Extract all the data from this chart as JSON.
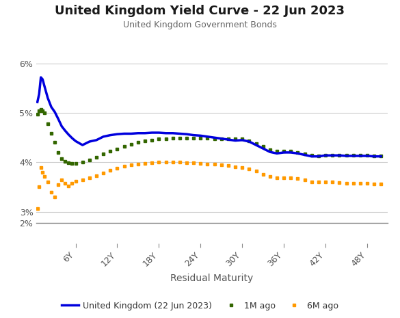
{
  "title": "United Kingdom Yield Curve - 22 Jun 2023",
  "subtitle": "United Kingdom Government Bonds",
  "xlabel": "Residual Maturity",
  "title_color": "#1a1a1a",
  "subtitle_color": "#666666",
  "background_color": "#ffffff",
  "grid_color": "#cccccc",
  "x_ticks": [
    6,
    12,
    18,
    24,
    30,
    36,
    42,
    48
  ],
  "x_tick_labels": [
    "6Y",
    "12Y",
    "18Y",
    "24Y",
    "30Y",
    "36Y",
    "42Y",
    "48Y"
  ],
  "ylim_plot": [
    2.8,
    6.3
  ],
  "ylim_full": [
    2.0,
    6.3
  ],
  "y_ticks": [
    3.0,
    4.0,
    5.0,
    6.0
  ],
  "y_tick_labels": [
    "3%",
    "4%",
    "5%",
    "6%"
  ],
  "y2_ticks": [
    2.0
  ],
  "y2_tick_labels": [
    "2%"
  ],
  "series": {
    "uk_2023": {
      "label": "United Kingdom (22 Jun 2023)",
      "color": "#0000dd",
      "linewidth": 2.5,
      "linestyle": "solid",
      "x": [
        0.5,
        0.75,
        1.0,
        1.25,
        1.5,
        2.0,
        2.5,
        3.0,
        3.5,
        4.0,
        4.5,
        5.0,
        5.5,
        6.0,
        7.0,
        8.0,
        9.0,
        10.0,
        11.0,
        12.0,
        13.0,
        14.0,
        15.0,
        16.0,
        17.0,
        18.0,
        19.0,
        20.0,
        21.0,
        22.0,
        23.0,
        24.0,
        25.0,
        26.0,
        27.0,
        28.0,
        29.0,
        30.0,
        31.0,
        32.0,
        33.0,
        34.0,
        35.0,
        36.0,
        37.0,
        38.0,
        39.0,
        40.0,
        41.0,
        42.0,
        43.0,
        44.0,
        45.0,
        46.0,
        47.0,
        48.0,
        49.0,
        50.0
      ],
      "y": [
        5.22,
        5.38,
        5.72,
        5.68,
        5.55,
        5.3,
        5.12,
        5.02,
        4.88,
        4.73,
        4.64,
        4.56,
        4.49,
        4.43,
        4.35,
        4.42,
        4.45,
        4.52,
        4.55,
        4.57,
        4.58,
        4.58,
        4.59,
        4.59,
        4.6,
        4.6,
        4.59,
        4.59,
        4.58,
        4.57,
        4.55,
        4.54,
        4.52,
        4.5,
        4.48,
        4.46,
        4.44,
        4.45,
        4.42,
        4.35,
        4.28,
        4.21,
        4.18,
        4.2,
        4.2,
        4.18,
        4.15,
        4.12,
        4.12,
        4.14,
        4.14,
        4.14,
        4.13,
        4.13,
        4.13,
        4.13,
        4.12,
        4.12
      ]
    },
    "uk_1m": {
      "label": "1M ago",
      "color": "#336600",
      "linewidth": 1.5,
      "x": [
        0.5,
        0.75,
        1.0,
        1.25,
        1.5,
        2.0,
        2.5,
        3.0,
        3.5,
        4.0,
        4.5,
        5.0,
        5.5,
        6.0,
        7.0,
        8.0,
        9.0,
        10.0,
        11.0,
        12.0,
        13.0,
        14.0,
        15.0,
        16.0,
        17.0,
        18.0,
        19.0,
        20.0,
        21.0,
        22.0,
        23.0,
        24.0,
        25.0,
        26.0,
        27.0,
        28.0,
        29.0,
        30.0,
        31.0,
        32.0,
        33.0,
        34.0,
        35.0,
        36.0,
        37.0,
        38.0,
        39.0,
        40.0,
        41.0,
        42.0,
        43.0,
        44.0,
        45.0,
        46.0,
        47.0,
        48.0,
        49.0,
        50.0
      ],
      "y": [
        4.97,
        5.05,
        5.07,
        5.04,
        5.0,
        4.78,
        4.58,
        4.4,
        4.2,
        4.08,
        4.02,
        3.99,
        3.98,
        3.98,
        4.0,
        4.05,
        4.1,
        4.17,
        4.22,
        4.27,
        4.33,
        4.37,
        4.4,
        4.43,
        4.45,
        4.47,
        4.48,
        4.49,
        4.49,
        4.49,
        4.49,
        4.49,
        4.49,
        4.48,
        4.48,
        4.47,
        4.47,
        4.47,
        4.44,
        4.38,
        4.32,
        4.26,
        4.22,
        4.22,
        4.22,
        4.2,
        4.17,
        4.14,
        4.13,
        4.15,
        4.15,
        4.15,
        4.14,
        4.14,
        4.14,
        4.14,
        4.13,
        4.13
      ]
    },
    "uk_6m": {
      "label": "6M ago",
      "color": "#ff9900",
      "linewidth": 1.5,
      "x": [
        0.5,
        0.75,
        1.0,
        1.25,
        1.5,
        2.0,
        2.5,
        3.0,
        3.5,
        4.0,
        4.5,
        5.0,
        5.5,
        6.0,
        7.0,
        8.0,
        9.0,
        10.0,
        11.0,
        12.0,
        13.0,
        14.0,
        15.0,
        16.0,
        17.0,
        18.0,
        19.0,
        20.0,
        21.0,
        22.0,
        23.0,
        24.0,
        25.0,
        26.0,
        27.0,
        28.0,
        29.0,
        30.0,
        31.0,
        32.0,
        33.0,
        34.0,
        35.0,
        36.0,
        37.0,
        38.0,
        39.0,
        40.0,
        41.0,
        42.0,
        43.0,
        44.0,
        45.0,
        46.0,
        47.0,
        48.0,
        49.0,
        50.0
      ],
      "y": [
        3.07,
        3.5,
        3.9,
        3.8,
        3.72,
        3.6,
        3.4,
        3.3,
        3.55,
        3.65,
        3.58,
        3.52,
        3.58,
        3.62,
        3.65,
        3.68,
        3.73,
        3.79,
        3.84,
        3.88,
        3.92,
        3.95,
        3.97,
        3.98,
        3.99,
        4.0,
        4.0,
        4.0,
        4.0,
        3.99,
        3.99,
        3.98,
        3.97,
        3.96,
        3.95,
        3.93,
        3.91,
        3.9,
        3.87,
        3.82,
        3.76,
        3.71,
        3.68,
        3.68,
        3.68,
        3.67,
        3.64,
        3.61,
        3.6,
        3.61,
        3.6,
        3.59,
        3.57,
        3.57,
        3.57,
        3.57,
        3.56,
        3.56
      ]
    }
  }
}
